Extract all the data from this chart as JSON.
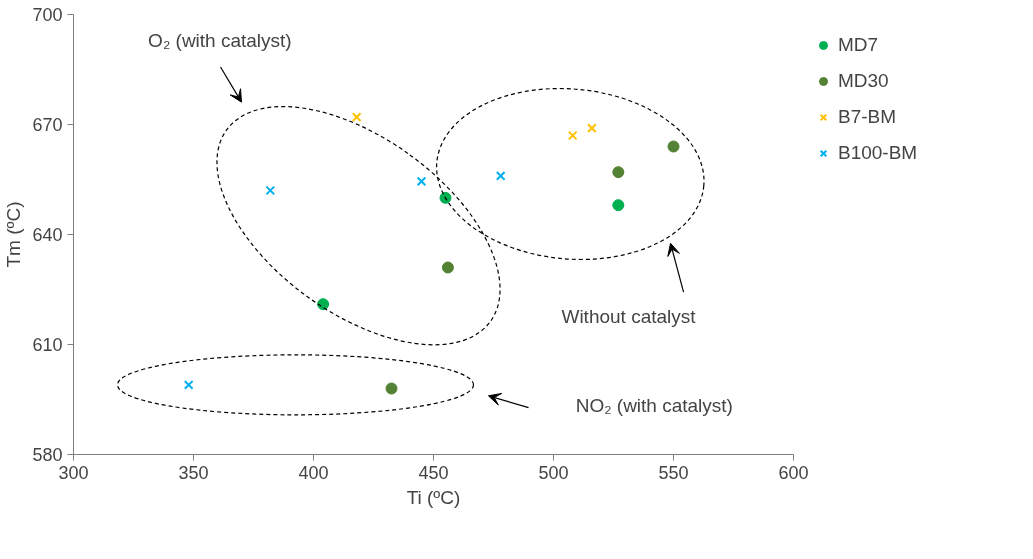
{
  "chart_data": {
    "type": "scatter",
    "xlabel": "Ti (ºC)",
    "ylabel": "Tm (ºC)",
    "xlim": [
      300,
      600
    ],
    "xticks": [
      300,
      350,
      400,
      450,
      500,
      550,
      600
    ],
    "ylim": [
      580,
      700
    ],
    "yticks": [
      580,
      610,
      640,
      670,
      700
    ],
    "grid": false,
    "legend": "right",
    "series": [
      {
        "name": "MD7",
        "color": "#00b050",
        "marker": "circle",
        "x": [
          404,
          455,
          527
        ],
        "values": [
          621,
          650,
          648
        ]
      },
      {
        "name": "MD30",
        "color": "#548235",
        "marker": "circle",
        "x": [
          456,
          432.5,
          527,
          550
        ],
        "values": [
          631,
          598,
          657,
          664
        ]
      },
      {
        "name": "B7-BM",
        "color": "#ffc000",
        "marker": "cross",
        "x": [
          418,
          508,
          516
        ],
        "values": [
          672,
          667,
          669
        ]
      },
      {
        "name": "B100-BM",
        "color": "#00b0f0",
        "marker": "cross",
        "x": [
          382,
          348,
          445,
          478
        ],
        "values": [
          652,
          599,
          654.5,
          656
        ]
      }
    ],
    "annotations": [
      "O₂ (with catalyst)",
      "Without catalyst",
      "NO₂ (with catalyst)"
    ]
  }
}
